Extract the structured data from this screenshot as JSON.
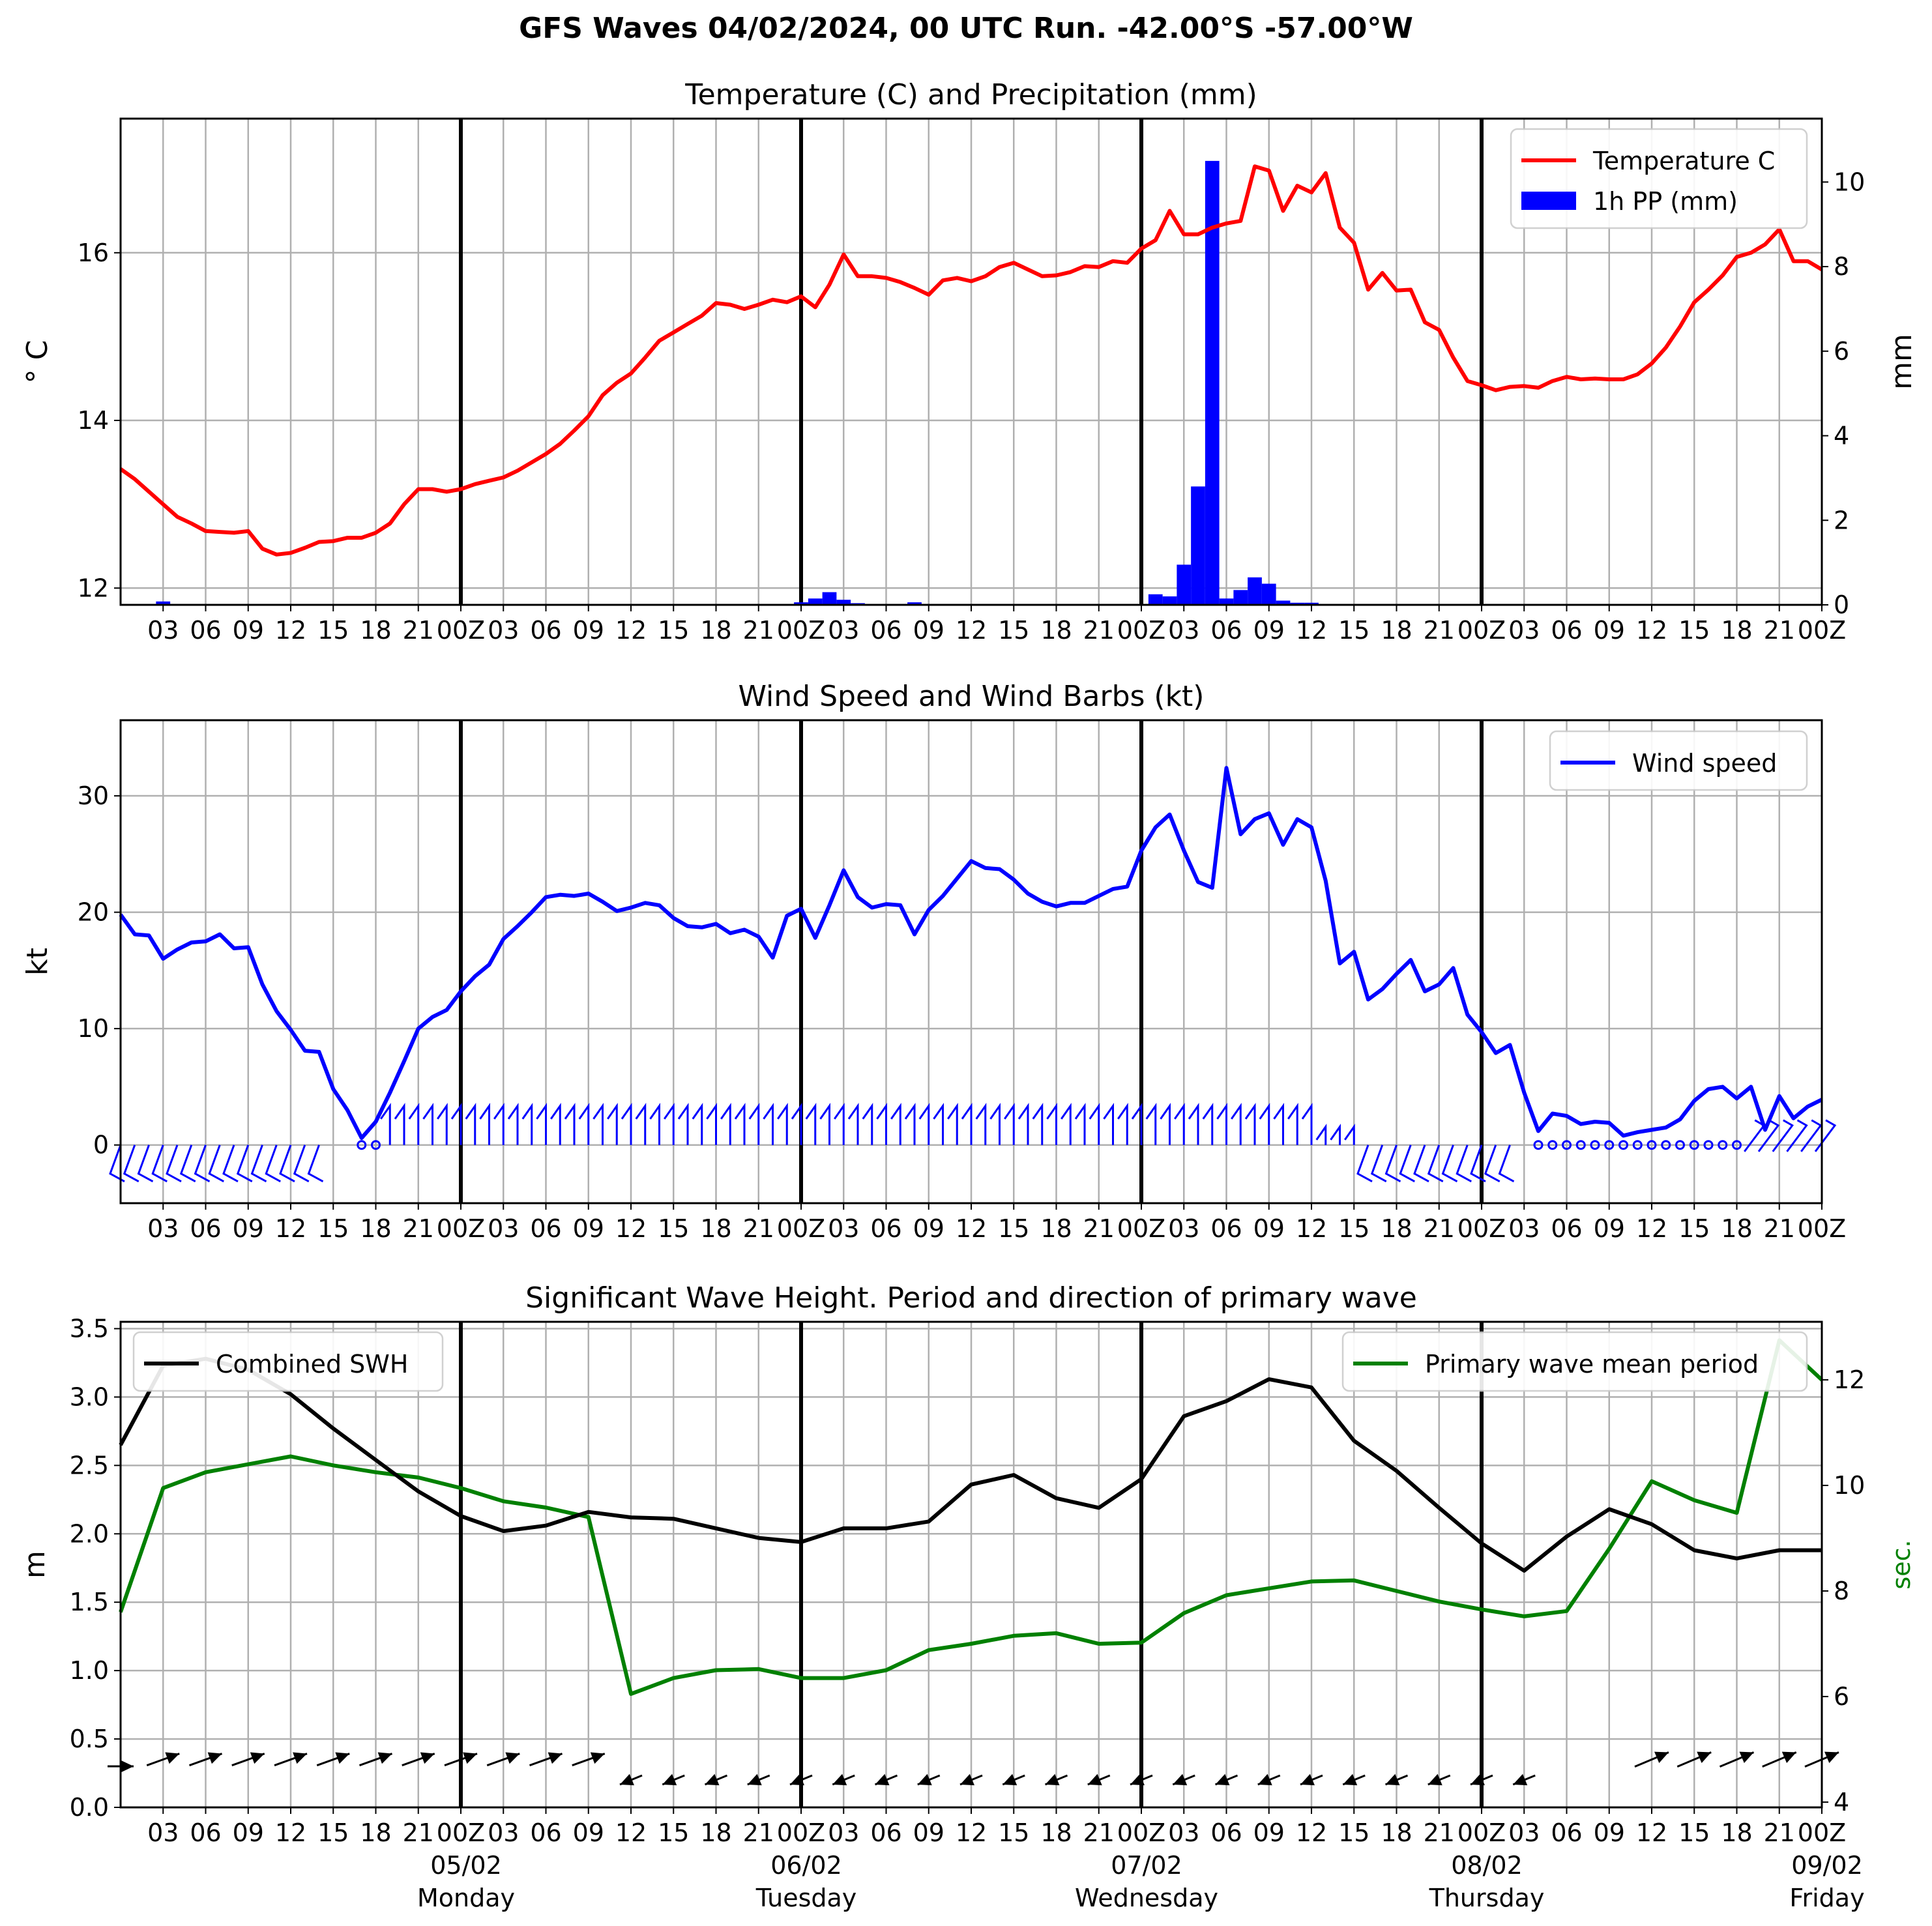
{
  "title": "GFS Waves 04/02/2024, 00 UTC Run. -42.00°S -57.00°W",
  "colors": {
    "temperature": "#ff0000",
    "precip": "#0000ff",
    "wind": "#0000ff",
    "swh": "#000000",
    "period": "#008000"
  },
  "x_ticks": [
    "03",
    "06",
    "09",
    "12",
    "15",
    "18",
    "21",
    "00Z",
    "03",
    "06",
    "09",
    "12",
    "15",
    "18",
    "21",
    "00Z",
    "03",
    "06",
    "09",
    "12",
    "15",
    "18",
    "21",
    "00Z",
    "03",
    "06",
    "09",
    "12",
    "15",
    "18",
    "21",
    "00Z",
    "03",
    "06",
    "09",
    "12",
    "15",
    "18",
    "21",
    "00Z"
  ],
  "day_labels": [
    {
      "hour": 24,
      "date": "05/02",
      "day": "Monday"
    },
    {
      "hour": 48,
      "date": "06/02",
      "day": "Tuesday"
    },
    {
      "hour": 72,
      "date": "07/02",
      "day": "Wednesday"
    },
    {
      "hour": 96,
      "date": "08/02",
      "day": "Thursday"
    },
    {
      "hour": 120,
      "date": "09/02",
      "day": "Friday"
    }
  ],
  "chart_data": [
    {
      "type": "line",
      "title": "Temperature (C) and Precipitation (mm)",
      "ylabel": "° C",
      "ylabel_right": "mm",
      "xlim": [
        0,
        120
      ],
      "ylim": [
        11.8,
        17.6
      ],
      "ylim_right": [
        0,
        11.5
      ],
      "yticks": [
        "12",
        "14",
        "16"
      ],
      "yticks_right": [
        "0",
        "2",
        "4",
        "6",
        "8",
        "10"
      ],
      "grid": true,
      "legend_position": "top-right",
      "series": [
        {
          "name": "Temperature C",
          "type": "line",
          "axis": "left",
          "x": [
            0,
            1,
            2,
            3,
            4,
            5,
            6,
            7,
            8,
            9,
            10,
            11,
            12,
            13,
            14,
            15,
            16,
            17,
            18,
            19,
            20,
            21,
            22,
            23,
            24,
            25,
            26,
            27,
            28,
            29,
            30,
            31,
            32,
            33,
            34,
            35,
            36,
            37,
            38,
            39,
            40,
            41,
            42,
            43,
            44,
            45,
            46,
            47,
            48,
            49,
            50,
            51,
            52,
            53,
            54,
            55,
            56,
            57,
            58,
            59,
            60,
            61,
            62,
            63,
            64,
            65,
            66,
            67,
            68,
            69,
            70,
            71,
            72,
            73,
            74,
            75,
            76,
            77,
            78,
            79,
            80,
            81,
            82,
            83,
            84,
            85,
            86,
            87,
            88,
            89,
            90,
            91,
            92,
            93,
            94,
            95,
            96,
            97,
            98,
            99,
            100,
            101,
            102,
            103,
            104,
            105,
            106,
            107,
            108,
            109,
            110,
            111,
            112,
            113,
            114,
            115,
            116,
            117,
            118,
            119,
            120
          ],
          "y": [
            13.42,
            13.3,
            13.15,
            13.0,
            12.85,
            12.77,
            12.68,
            12.67,
            12.66,
            12.68,
            12.47,
            12.4,
            12.42,
            12.48,
            12.55,
            12.56,
            12.6,
            12.6,
            12.66,
            12.77,
            13.0,
            13.18,
            13.18,
            13.15,
            13.18,
            13.24,
            13.28,
            13.32,
            13.4,
            13.5,
            13.6,
            13.72,
            13.88,
            14.05,
            14.3,
            14.45,
            14.56,
            14.75,
            14.95,
            15.05,
            15.15,
            15.25,
            15.4,
            15.38,
            15.33,
            15.38,
            15.44,
            15.41,
            15.48,
            15.35,
            15.62,
            15.98,
            15.72,
            15.72,
            15.7,
            15.65,
            15.58,
            15.5,
            15.67,
            15.7,
            15.66,
            15.72,
            15.83,
            15.88,
            15.8,
            15.72,
            15.73,
            15.77,
            15.84,
            15.83,
            15.9,
            15.88,
            16.05,
            16.15,
            16.5,
            16.22,
            16.22,
            16.3,
            16.35,
            16.38,
            17.03,
            16.98,
            16.5,
            16.8,
            16.72,
            16.95,
            16.3,
            16.12,
            15.56,
            15.76,
            15.55,
            15.56,
            15.17,
            15.08,
            14.75,
            14.47,
            14.42,
            14.36,
            14.4,
            14.41,
            14.39,
            14.47,
            14.52,
            14.49,
            14.5,
            14.49,
            14.49,
            14.55,
            14.68,
            14.87,
            15.12,
            15.41,
            15.56,
            15.73,
            15.95,
            16.0,
            16.1,
            16.28,
            15.9,
            15.9,
            15.8
          ]
        },
        {
          "name": "1h PP (mm)",
          "type": "bar",
          "axis": "right",
          "x": [
            3,
            48,
            49,
            50,
            51,
            52,
            56,
            73,
            74,
            75,
            76,
            77,
            78,
            79,
            80,
            81,
            82,
            83,
            84
          ],
          "y": [
            0.08,
            0.06,
            0.15,
            0.3,
            0.12,
            0.04,
            0.06,
            0.25,
            0.2,
            0.95,
            2.8,
            10.5,
            0.15,
            0.35,
            0.65,
            0.5,
            0.1,
            0.05,
            0.05
          ]
        }
      ]
    },
    {
      "type": "line",
      "title": "Wind Speed and Wind Barbs (kt)",
      "ylabel": "kt",
      "xlim": [
        0,
        120
      ],
      "ylim": [
        -5,
        36.5
      ],
      "yticks": [
        "0",
        "10",
        "20",
        "30"
      ],
      "grid": true,
      "legend_position": "top-right",
      "series": [
        {
          "name": "Wind speed",
          "x": [
            0,
            1,
            2,
            3,
            4,
            5,
            6,
            7,
            8,
            9,
            10,
            11,
            12,
            13,
            14,
            15,
            16,
            17,
            18,
            19,
            20,
            21,
            22,
            23,
            24,
            25,
            26,
            27,
            28,
            29,
            30,
            31,
            32,
            33,
            34,
            35,
            36,
            37,
            38,
            39,
            40,
            41,
            42,
            43,
            44,
            45,
            46,
            47,
            48,
            49,
            50,
            51,
            52,
            53,
            54,
            55,
            56,
            57,
            58,
            59,
            60,
            61,
            62,
            63,
            64,
            65,
            66,
            67,
            68,
            69,
            70,
            71,
            72,
            73,
            74,
            75,
            76,
            77,
            78,
            79,
            80,
            81,
            82,
            83,
            84,
            85,
            86,
            87,
            88,
            89,
            90,
            91,
            92,
            93,
            94,
            95,
            96,
            97,
            98,
            99,
            100,
            101,
            102,
            103,
            104,
            105,
            106,
            107,
            108,
            109,
            110,
            111,
            112,
            113,
            114,
            115,
            116,
            117,
            118,
            119,
            120
          ],
          "y": [
            19.8,
            18.1,
            18.0,
            16.0,
            16.8,
            17.4,
            17.5,
            18.1,
            16.9,
            17.0,
            13.8,
            11.5,
            9.9,
            8.1,
            8.0,
            4.8,
            3.0,
            0.6,
            2.0,
            4.5,
            7.2,
            10.0,
            11.0,
            11.6,
            13.2,
            14.5,
            15.5,
            17.7,
            18.8,
            20.0,
            21.3,
            21.5,
            21.4,
            21.6,
            20.9,
            20.1,
            20.4,
            20.8,
            20.6,
            19.5,
            18.8,
            18.7,
            19.0,
            18.2,
            18.5,
            17.9,
            16.1,
            19.7,
            20.3,
            17.8,
            20.6,
            23.6,
            21.3,
            20.4,
            20.7,
            20.6,
            18.1,
            20.2,
            21.4,
            22.9,
            24.4,
            23.8,
            23.7,
            22.8,
            21.6,
            20.9,
            20.5,
            20.8,
            20.8,
            21.4,
            22.0,
            22.2,
            25.3,
            27.3,
            28.4,
            25.3,
            22.6,
            22.1,
            32.4,
            26.7,
            28.0,
            28.5,
            25.8,
            28.0,
            27.3,
            22.7,
            15.6,
            16.6,
            12.5,
            13.4,
            14.7,
            15.9,
            13.2,
            13.8,
            15.2,
            11.2,
            9.7,
            7.9,
            8.6,
            4.5,
            1.2,
            2.7,
            2.5,
            1.8,
            2.0,
            1.9,
            0.8,
            1.1,
            1.3,
            1.5,
            2.2,
            3.8,
            4.8,
            5.0,
            4.0,
            5.0,
            1.3,
            4.2,
            2.3,
            3.3,
            3.9
          ]
        },
        {
          "name": "Wind barbs",
          "type": "barb_strip"
        }
      ]
    },
    {
      "type": "line",
      "title": "Significant Wave Height. Period and direction of primary wave",
      "ylabel": "m",
      "ylabel_right": "sec.",
      "xlim": [
        0,
        120
      ],
      "ylim": [
        0,
        3.55
      ],
      "ylim_right": [
        3.9,
        13.1
      ],
      "yticks": [
        "0.0",
        "0.5",
        "1.0",
        "1.5",
        "2.0",
        "2.5",
        "3.0",
        "3.5"
      ],
      "yticks_right": [
        "4",
        "6",
        "8",
        "10",
        "12"
      ],
      "grid": true,
      "series": [
        {
          "name": "Combined SWH",
          "axis": "left",
          "legend_position": "top-left",
          "x": [
            0,
            3,
            6,
            9,
            12,
            15,
            18,
            21,
            24,
            27,
            30,
            33,
            36,
            39,
            42,
            45,
            48,
            51,
            54,
            57,
            60,
            63,
            66,
            69,
            72,
            75,
            78,
            81,
            84,
            87,
            90,
            93,
            96,
            99,
            102,
            105,
            108,
            111,
            114,
            117,
            120
          ],
          "y": [
            2.65,
            3.23,
            3.28,
            3.2,
            3.02,
            2.77,
            2.54,
            2.31,
            2.13,
            2.02,
            2.06,
            2.16,
            2.12,
            2.11,
            2.04,
            1.97,
            1.94,
            2.04,
            2.04,
            2.09,
            2.36,
            2.43,
            2.26,
            2.19,
            2.4,
            2.86,
            2.97,
            3.13,
            3.07,
            2.68,
            2.46,
            2.19,
            1.93,
            1.73,
            1.98,
            2.18,
            2.07,
            1.88,
            1.82,
            1.88,
            1.88
          ]
        },
        {
          "name": "Primary wave mean period",
          "axis": "right",
          "legend_position": "top-right",
          "x": [
            0,
            3,
            6,
            9,
            12,
            15,
            18,
            21,
            24,
            27,
            30,
            33,
            36,
            39,
            42,
            45,
            48,
            51,
            54,
            57,
            60,
            63,
            66,
            69,
            72,
            75,
            78,
            81,
            84,
            87,
            90,
            93,
            96,
            99,
            102,
            105,
            108,
            111,
            114,
            117,
            120
          ],
          "y": [
            7.6,
            9.95,
            10.25,
            10.4,
            10.55,
            10.38,
            10.25,
            10.15,
            9.95,
            9.7,
            9.58,
            9.4,
            6.05,
            6.35,
            6.5,
            6.52,
            6.35,
            6.35,
            6.5,
            6.88,
            7.0,
            7.15,
            7.2,
            7.0,
            7.02,
            7.58,
            7.92,
            8.05,
            8.18,
            8.2,
            8.0,
            7.8,
            7.65,
            7.52,
            7.62,
            8.8,
            10.08,
            9.72,
            9.48,
            12.75,
            12.0
          ]
        },
        {
          "name": "Primary wave direction",
          "type": "arrow_strip"
        }
      ]
    }
  ]
}
